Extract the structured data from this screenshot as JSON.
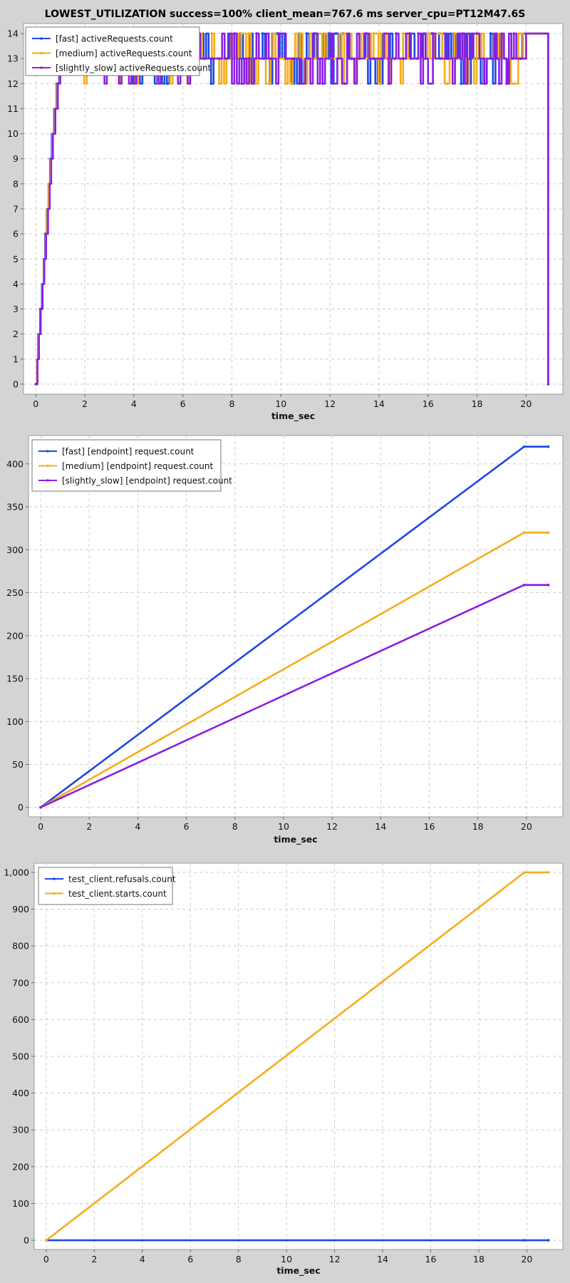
{
  "title": "LOWEST_UTILIZATION success=100% client_mean=767.6 ms server_cpu=PT12M47.6S",
  "colors": {
    "blue": "#1f47e6",
    "orange": "#f5ad19",
    "purple": "#8a1ee6",
    "background": "#d4d4d4",
    "plot_bg": "#ffffff",
    "grid": "#cccccc"
  },
  "chart_data": [
    {
      "type": "line",
      "xlabel": "time_sec",
      "ylabel": "",
      "xlim": [
        -0.5,
        21.5
      ],
      "ylim": [
        -0.4,
        14.4
      ],
      "xticks": [
        0,
        2,
        4,
        6,
        8,
        10,
        12,
        14,
        16,
        18,
        20
      ],
      "yticks": [
        0,
        1,
        2,
        3,
        4,
        5,
        6,
        7,
        8,
        9,
        10,
        11,
        12,
        13,
        14
      ],
      "grid": true,
      "legend": "top-left",
      "series": [
        {
          "name": "[fast] activeRequests.count",
          "color": "#1f47e6",
          "pattern": "step",
          "ramp": [
            [
              0,
              0
            ],
            [
              0.05,
              1
            ],
            [
              0.1,
              2
            ],
            [
              0.18,
              3
            ],
            [
              0.25,
              4
            ],
            [
              0.32,
              5
            ],
            [
              0.38,
              6
            ],
            [
              0.45,
              7
            ],
            [
              0.52,
              8
            ],
            [
              0.58,
              9
            ],
            [
              0.65,
              10
            ],
            [
              0.75,
              11
            ],
            [
              0.85,
              12
            ],
            [
              0.95,
              13
            ]
          ],
          "oscillation": {
            "from": 0.95,
            "to": 19.9,
            "step": 0.1,
            "base": 13,
            "high": 14,
            "low": 12,
            "seed": 11
          },
          "end": [
            [
              20.0,
              14
            ],
            [
              20.9,
              0
            ]
          ]
        },
        {
          "name": "[medium] activeRequests.count",
          "color": "#f5ad19",
          "pattern": "step",
          "ramp": [
            [
              0,
              0
            ],
            [
              0.05,
              1
            ],
            [
              0.12,
              2
            ],
            [
              0.2,
              3
            ],
            [
              0.27,
              4
            ],
            [
              0.33,
              5
            ],
            [
              0.4,
              6
            ],
            [
              0.47,
              7
            ],
            [
              0.53,
              8
            ],
            [
              0.6,
              9
            ],
            [
              0.68,
              10
            ],
            [
              0.78,
              11
            ],
            [
              0.88,
              12
            ],
            [
              0.98,
              13
            ]
          ],
          "oscillation": {
            "from": 0.98,
            "to": 19.9,
            "step": 0.1,
            "base": 13,
            "high": 14,
            "low": 12,
            "seed": 23
          },
          "end": [
            [
              20.0,
              14
            ],
            [
              20.9,
              0
            ]
          ]
        },
        {
          "name": "[slightly_slow] activeRequests.count",
          "color": "#8a1ee6",
          "pattern": "step",
          "ramp": [
            [
              0,
              0
            ],
            [
              0.07,
              1
            ],
            [
              0.13,
              2
            ],
            [
              0.2,
              3
            ],
            [
              0.28,
              4
            ],
            [
              0.35,
              5
            ],
            [
              0.42,
              6
            ],
            [
              0.5,
              7
            ],
            [
              0.57,
              8
            ],
            [
              0.63,
              9
            ],
            [
              0.7,
              10
            ],
            [
              0.8,
              11
            ],
            [
              0.9,
              12
            ],
            [
              1.0,
              13
            ]
          ],
          "oscillation": {
            "from": 1.0,
            "to": 19.9,
            "step": 0.1,
            "base": 13,
            "high": 14,
            "low": 12,
            "seed": 37
          },
          "end": [
            [
              20.0,
              14
            ],
            [
              20.9,
              0
            ]
          ]
        }
      ]
    },
    {
      "type": "line",
      "xlabel": "time_sec",
      "ylabel": "",
      "xlim": [
        -0.5,
        21.5
      ],
      "ylim": [
        -11,
        433
      ],
      "xticks": [
        0,
        2,
        4,
        6,
        8,
        10,
        12,
        14,
        16,
        18,
        20
      ],
      "yticks": [
        0,
        50,
        100,
        150,
        200,
        250,
        300,
        350,
        400
      ],
      "grid": true,
      "legend": "top-left",
      "series": [
        {
          "name": "[fast] [endpoint] request.count",
          "color": "#1f47e6",
          "points": [
            [
              0,
              0
            ],
            [
              19.9,
              420
            ],
            [
              20.9,
              420
            ]
          ]
        },
        {
          "name": "[medium] [endpoint] request.count",
          "color": "#f5ad19",
          "points": [
            [
              0,
              0
            ],
            [
              19.9,
              320
            ],
            [
              20.9,
              320
            ]
          ]
        },
        {
          "name": "[slightly_slow] [endpoint] request.count",
          "color": "#8a1ee6",
          "points": [
            [
              0,
              0
            ],
            [
              19.9,
              259
            ],
            [
              20.9,
              259
            ]
          ]
        }
      ]
    },
    {
      "type": "line",
      "xlabel": "time_sec",
      "ylabel": "",
      "xlim": [
        -0.5,
        21.5
      ],
      "ylim": [
        -25,
        1025
      ],
      "xticks": [
        0,
        2,
        4,
        6,
        8,
        10,
        12,
        14,
        16,
        18,
        20
      ],
      "yticks": [
        0,
        100,
        200,
        300,
        400,
        500,
        600,
        700,
        800,
        900,
        1000
      ],
      "ytick_labels": [
        "0",
        "100",
        "200",
        "300",
        "400",
        "500",
        "600",
        "700",
        "800",
        "900",
        "1,000"
      ],
      "grid": true,
      "legend": "top-left",
      "series": [
        {
          "name": "test_client.refusals.count",
          "color": "#1f47e6",
          "points": [
            [
              0,
              0
            ],
            [
              19.9,
              0
            ],
            [
              20.9,
              0
            ]
          ]
        },
        {
          "name": "test_client.starts.count",
          "color": "#f5ad19",
          "points": [
            [
              0,
              0
            ],
            [
              19.9,
              1000
            ],
            [
              20.9,
              1000
            ]
          ]
        }
      ]
    }
  ]
}
